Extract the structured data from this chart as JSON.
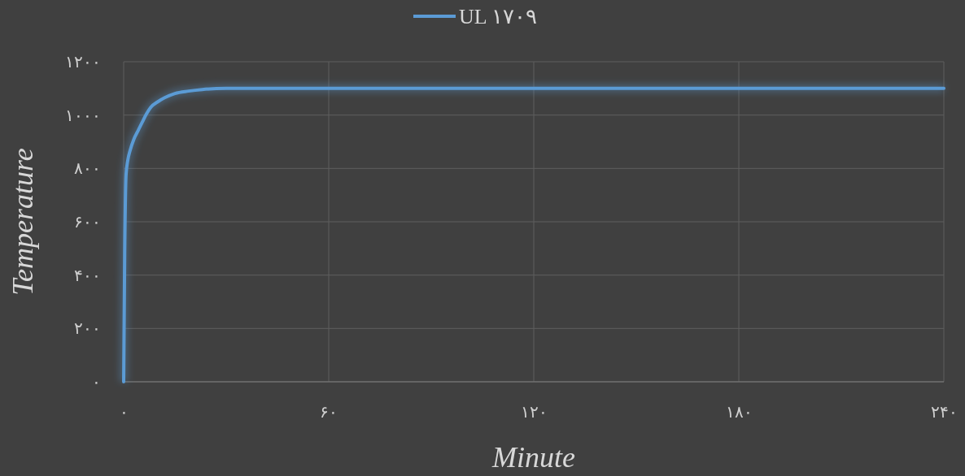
{
  "chart_data": {
    "type": "line",
    "xlabel": "Minute",
    "ylabel": "Temperature",
    "series": [
      {
        "name": "UL ۱۷۰۹",
        "color": "#5b9bd5",
        "x": [
          0,
          0.3,
          0.7,
          1.2,
          1.9,
          3,
          4.3,
          5.5,
          6.7,
          8,
          10,
          12,
          15,
          19,
          23,
          30,
          45,
          60,
          120,
          180,
          240
        ],
        "values": [
          0,
          480,
          777,
          830,
          868,
          910,
          944,
          975,
          1005,
          1030,
          1050,
          1065,
          1081,
          1090,
          1096,
          1100,
          1100,
          1100,
          1100,
          1100,
          1100
        ]
      }
    ],
    "xlim": [
      0,
      240
    ],
    "xticks": [
      {
        "value": 0,
        "label": "۰"
      },
      {
        "value": 60,
        "label": "۶۰"
      },
      {
        "value": 120,
        "label": "۱۲۰"
      },
      {
        "value": 180,
        "label": "۱۸۰"
      },
      {
        "value": 240,
        "label": "۲۴۰"
      }
    ],
    "ylim": [
      0,
      1200
    ],
    "yticks": [
      {
        "value": 0,
        "label": "۰"
      },
      {
        "value": 200,
        "label": "۲۰۰"
      },
      {
        "value": 400,
        "label": "۴۰۰"
      },
      {
        "value": 600,
        "label": "۶۰۰"
      },
      {
        "value": 800,
        "label": "۸۰۰"
      },
      {
        "value": 1000,
        "label": "۱۰۰۰"
      },
      {
        "value": 1200,
        "label": "۱۲۰۰"
      }
    ],
    "grid": true,
    "legend": "top",
    "marker": "none",
    "line_style": "solid"
  }
}
